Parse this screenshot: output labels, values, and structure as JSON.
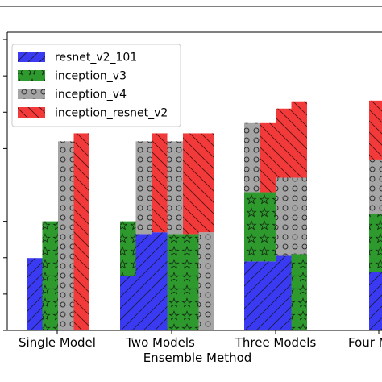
{
  "chart_data": {
    "type": "bar",
    "xlabel": "Ensemble Method",
    "categories": [
      "Single Model",
      "Two Models",
      "Three Models",
      "Four Models"
    ],
    "ylim": [
      0.0,
      0.82
    ],
    "grid": false,
    "legend_position": "top-left",
    "series": [
      {
        "name": "resnet_v2_101",
        "color": "#3a3af2",
        "hatch": "diag-forward"
      },
      {
        "name": "inception_v3",
        "color": "#2e9a2e",
        "hatch": "stars"
      },
      {
        "name": "inception_v4",
        "color": "#a5a5a5",
        "hatch": "circles"
      },
      {
        "name": "inception_resnet_v2",
        "color": "#f23a3a",
        "hatch": "diag-back"
      }
    ],
    "columns": [
      {
        "category": "Single Model",
        "segments": [
          {
            "series": "resnet_v2_101",
            "value": 0.199
          }
        ]
      },
      {
        "category": "Single Model",
        "segments": [
          {
            "series": "inception_v3",
            "value": 0.3
          }
        ]
      },
      {
        "category": "Single Model",
        "segments": [
          {
            "series": "inception_v4",
            "value": 0.52
          }
        ]
      },
      {
        "category": "Single Model",
        "segments": [
          {
            "series": "inception_resnet_v2",
            "value": 0.542
          }
        ]
      },
      {
        "category": "Two Models",
        "segments": [
          {
            "series": "resnet_v2_101",
            "value": 0.15
          },
          {
            "series": "inception_v3",
            "value": 0.15
          }
        ]
      },
      {
        "category": "Two Models",
        "segments": [
          {
            "series": "resnet_v2_101",
            "value": 0.265
          },
          {
            "series": "inception_v4",
            "value": 0.255
          }
        ]
      },
      {
        "category": "Two Models",
        "segments": [
          {
            "series": "resnet_v2_101",
            "value": 0.27
          },
          {
            "series": "inception_resnet_v2",
            "value": 0.272
          }
        ]
      },
      {
        "category": "Two Models",
        "segments": [
          {
            "series": "inception_v3",
            "value": 0.265
          },
          {
            "series": "inception_v4",
            "value": 0.255
          }
        ]
      },
      {
        "category": "Two Models",
        "segments": [
          {
            "series": "inception_v3",
            "value": 0.265
          },
          {
            "series": "inception_resnet_v2",
            "value": 0.277
          }
        ]
      },
      {
        "category": "Two Models",
        "segments": [
          {
            "series": "inception_v4",
            "value": 0.27
          },
          {
            "series": "inception_resnet_v2",
            "value": 0.272
          }
        ]
      },
      {
        "category": "Three Models",
        "segments": [
          {
            "series": "resnet_v2_101",
            "value": 0.19
          },
          {
            "series": "inception_v3",
            "value": 0.19
          },
          {
            "series": "inception_v4",
            "value": 0.19
          }
        ]
      },
      {
        "category": "Three Models",
        "segments": [
          {
            "series": "resnet_v2_101",
            "value": 0.19
          },
          {
            "series": "inception_v3",
            "value": 0.19
          },
          {
            "series": "inception_resnet_v2",
            "value": 0.19
          }
        ]
      },
      {
        "category": "Three Models",
        "segments": [
          {
            "series": "resnet_v2_101",
            "value": 0.205
          },
          {
            "series": "inception_v4",
            "value": 0.215
          },
          {
            "series": "inception_resnet_v2",
            "value": 0.19
          }
        ]
      },
      {
        "category": "Three Models",
        "segments": [
          {
            "series": "inception_v3",
            "value": 0.21
          },
          {
            "series": "inception_v4",
            "value": 0.21
          },
          {
            "series": "inception_resnet_v2",
            "value": 0.21
          }
        ]
      },
      {
        "category": "Four Models",
        "segments": [
          {
            "series": "resnet_v2_101",
            "value": 0.16
          },
          {
            "series": "inception_v3",
            "value": 0.16
          },
          {
            "series": "inception_v4",
            "value": 0.15
          },
          {
            "series": "inception_resnet_v2",
            "value": 0.162
          }
        ]
      }
    ]
  },
  "xlabel": "Ensemble Method",
  "xtick_labels": [
    "Single Model",
    "Two Models",
    "Three Models",
    "Four M"
  ],
  "legend": [
    "resnet_v2_101",
    "inception_v3",
    "inception_v4",
    "inception_resnet_v2"
  ]
}
